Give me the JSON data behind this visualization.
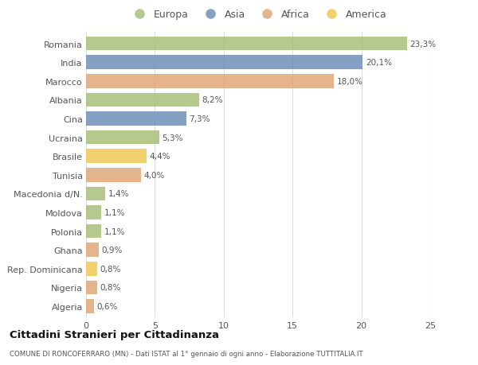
{
  "countries": [
    "Romania",
    "India",
    "Marocco",
    "Albania",
    "Cina",
    "Ucraina",
    "Brasile",
    "Tunisia",
    "Macedonia d/N.",
    "Moldova",
    "Polonia",
    "Ghana",
    "Rep. Dominicana",
    "Nigeria",
    "Algeria"
  ],
  "values": [
    23.3,
    20.1,
    18.0,
    8.2,
    7.3,
    5.3,
    4.4,
    4.0,
    1.4,
    1.1,
    1.1,
    0.9,
    0.8,
    0.8,
    0.6
  ],
  "labels": [
    "23,3%",
    "20,1%",
    "18,0%",
    "8,2%",
    "7,3%",
    "5,3%",
    "4,4%",
    "4,0%",
    "1,4%",
    "1,1%",
    "1,1%",
    "0,9%",
    "0,8%",
    "0,8%",
    "0,6%"
  ],
  "continents": [
    "Europa",
    "Asia",
    "Africa",
    "Europa",
    "Asia",
    "Europa",
    "America",
    "Africa",
    "Europa",
    "Europa",
    "Europa",
    "Africa",
    "America",
    "Africa",
    "Africa"
  ],
  "continent_colors": {
    "Europa": "#a8c07a",
    "Asia": "#7090b8",
    "Africa": "#e0a878",
    "America": "#f0c857"
  },
  "legend_order": [
    "Europa",
    "Asia",
    "Africa",
    "America"
  ],
  "xlim": [
    0,
    25
  ],
  "xticks": [
    0,
    5,
    10,
    15,
    20,
    25
  ],
  "title": "Cittadini Stranieri per Cittadinanza",
  "subtitle": "COMUNE DI RONCOFERRARO (MN) - Dati ISTAT al 1° gennaio di ogni anno - Elaborazione TUTTITALIA.IT",
  "bg_color": "#ffffff",
  "bar_height": 0.75,
  "grid_color": "#dddddd",
  "text_color": "#555555",
  "title_color": "#111111",
  "subtitle_color": "#555555",
  "label_fontsize": 7.5,
  "ytick_fontsize": 8,
  "xtick_fontsize": 8
}
